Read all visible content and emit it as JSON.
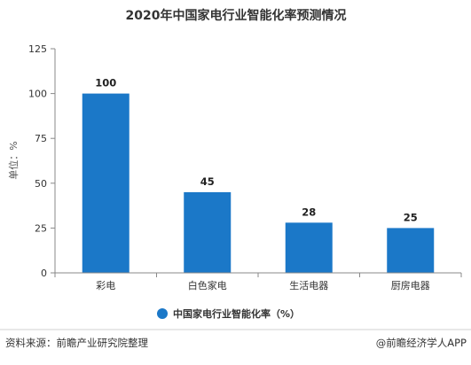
{
  "chart_data": {
    "type": "bar",
    "title": "2020年中国家电行业智能化率预测情况",
    "categories": [
      "彩电",
      "白色家电",
      "生活电器",
      "厨房电器"
    ],
    "series": [
      {
        "name": "中国家电行业智能化率（%）",
        "values": [
          100,
          45,
          28,
          25
        ],
        "color": "#1b78c8"
      }
    ],
    "ylabel": "单位：%",
    "xlabel": "",
    "ylim": [
      0,
      125
    ],
    "yticks": [
      0,
      25,
      50,
      75,
      100,
      125
    ],
    "grid": false,
    "legend_position": "bottom-center",
    "data_labels": true
  },
  "footer": {
    "source": "资料来源：前瞻产业研究院整理",
    "credit": "@前瞻经济学人APP"
  },
  "watermark": "前瞻产业研究院",
  "colors": {
    "axis": "#888888",
    "text": "#333333",
    "bar": "#1b78c8"
  }
}
